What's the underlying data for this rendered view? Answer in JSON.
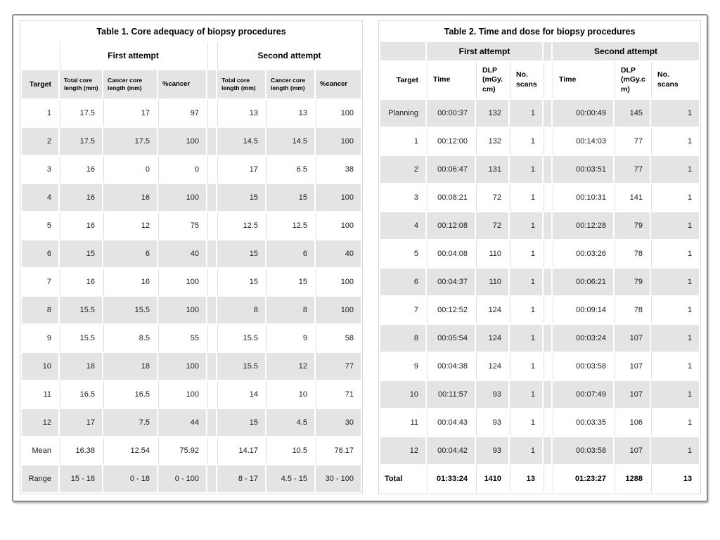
{
  "table1": {
    "title": "Table 1. Core adequacy of biopsy procedures",
    "target_header": "Target",
    "groups": [
      "First attempt",
      "Second attempt"
    ],
    "subheaders_first": [
      "Total core\nlength (mm)",
      "Cancer core\nlength (mm)",
      "%cancer"
    ],
    "subheaders_second": [
      "Total core\nlength (mm)",
      "Cancer core\nlength (mm)",
      "%cancer"
    ],
    "rows": [
      {
        "label": "1",
        "first": [
          "17.5",
          "17",
          "97"
        ],
        "second": [
          "13",
          "13",
          "100"
        ]
      },
      {
        "label": "2",
        "first": [
          "17.5",
          "17.5",
          "100"
        ],
        "second": [
          "14.5",
          "14.5",
          "100"
        ]
      },
      {
        "label": "3",
        "first": [
          "16",
          "0",
          "0"
        ],
        "second": [
          "17",
          "6.5",
          "38"
        ]
      },
      {
        "label": "4",
        "first": [
          "16",
          "16",
          "100"
        ],
        "second": [
          "15",
          "15",
          "100"
        ]
      },
      {
        "label": "5",
        "first": [
          "16",
          "12",
          "75"
        ],
        "second": [
          "12.5",
          "12.5",
          "100"
        ]
      },
      {
        "label": "6",
        "first": [
          "15",
          "6",
          "40"
        ],
        "second": [
          "15",
          "6",
          "40"
        ]
      },
      {
        "label": "7",
        "first": [
          "16",
          "16",
          "100"
        ],
        "second": [
          "15",
          "15",
          "100"
        ]
      },
      {
        "label": "8",
        "first": [
          "15.5",
          "15.5",
          "100"
        ],
        "second": [
          "8",
          "8",
          "100"
        ]
      },
      {
        "label": "9",
        "first": [
          "15.5",
          "8.5",
          "55"
        ],
        "second": [
          "15.5",
          "9",
          "58"
        ]
      },
      {
        "label": "10",
        "first": [
          "18",
          "18",
          "100"
        ],
        "second": [
          "15.5",
          "12",
          "77"
        ]
      },
      {
        "label": "11",
        "first": [
          "16.5",
          "16.5",
          "100"
        ],
        "second": [
          "14",
          "10",
          "71"
        ]
      },
      {
        "label": "12",
        "first": [
          "17",
          "7.5",
          "44"
        ],
        "second": [
          "15",
          "4.5",
          "30"
        ]
      },
      {
        "label": "Mean",
        "first": [
          "16.38",
          "12.54",
          "75.92"
        ],
        "second": [
          "14.17",
          "10.5",
          "76.17"
        ]
      },
      {
        "label": "Range",
        "first": [
          "15 - 18",
          "0 - 18",
          "0 - 100"
        ],
        "second": [
          "8 - 17",
          "4.5 - 15",
          "30 - 100"
        ]
      }
    ]
  },
  "table2": {
    "title": "Table 2. Time and dose for biopsy procedures",
    "target_header": "Target",
    "groups": [
      "First attempt",
      "Second attempt"
    ],
    "subheaders_first": [
      "Time",
      "DLP\n(mGy.\ncm)",
      "No.\nscans"
    ],
    "subheaders_second": [
      "Time",
      "DLP\n(mGy.c\nm)",
      "No.\nscans"
    ],
    "rows": [
      {
        "label": "Planning",
        "first": [
          "00:00:37",
          "132",
          "1"
        ],
        "second": [
          "00:00:49",
          "145",
          "1"
        ]
      },
      {
        "label": "1",
        "first": [
          "00:12:00",
          "132",
          "1"
        ],
        "second": [
          "00:14:03",
          "77",
          "1"
        ]
      },
      {
        "label": "2",
        "first": [
          "00:06:47",
          "131",
          "1"
        ],
        "second": [
          "00:03:51",
          "77",
          "1"
        ]
      },
      {
        "label": "3",
        "first": [
          "00:08:21",
          "72",
          "1"
        ],
        "second": [
          "00:10:31",
          "141",
          "1"
        ]
      },
      {
        "label": "4",
        "first": [
          "00:12:08",
          "72",
          "1"
        ],
        "second": [
          "00:12:28",
          "79",
          "1"
        ]
      },
      {
        "label": "5",
        "first": [
          "00:04:08",
          "110",
          "1"
        ],
        "second": [
          "00:03:26",
          "78",
          "1"
        ]
      },
      {
        "label": "6",
        "first": [
          "00:04:37",
          "110",
          "1"
        ],
        "second": [
          "00:06:21",
          "79",
          "1"
        ]
      },
      {
        "label": "7",
        "first": [
          "00:12:52",
          "124",
          "1"
        ],
        "second": [
          "00:09:14",
          "78",
          "1"
        ]
      },
      {
        "label": "8",
        "first": [
          "00:05:54",
          "124",
          "1"
        ],
        "second": [
          "00:03:24",
          "107",
          "1"
        ]
      },
      {
        "label": "9",
        "first": [
          "00:04:38",
          "124",
          "1"
        ],
        "second": [
          "00:03:58",
          "107",
          "1"
        ]
      },
      {
        "label": "10",
        "first": [
          "00:11:57",
          "93",
          "1"
        ],
        "second": [
          "00:07:49",
          "107",
          "1"
        ]
      },
      {
        "label": "11",
        "first": [
          "00:04:43",
          "93",
          "1"
        ],
        "second": [
          "00:03:35",
          "106",
          "1"
        ]
      },
      {
        "label": "12",
        "first": [
          "00:04:42",
          "93",
          "1"
        ],
        "second": [
          "00:03:58",
          "107",
          "1"
        ]
      },
      {
        "label": "Total",
        "first": [
          "01:33:24",
          "1410",
          "13"
        ],
        "second": [
          "01:23:27",
          "1288",
          "13"
        ],
        "bold": true
      }
    ]
  },
  "colors": {
    "row_shade": "#e4e4e7",
    "frame_border": "#8d8d8d",
    "table_border": "#d8d8da"
  }
}
